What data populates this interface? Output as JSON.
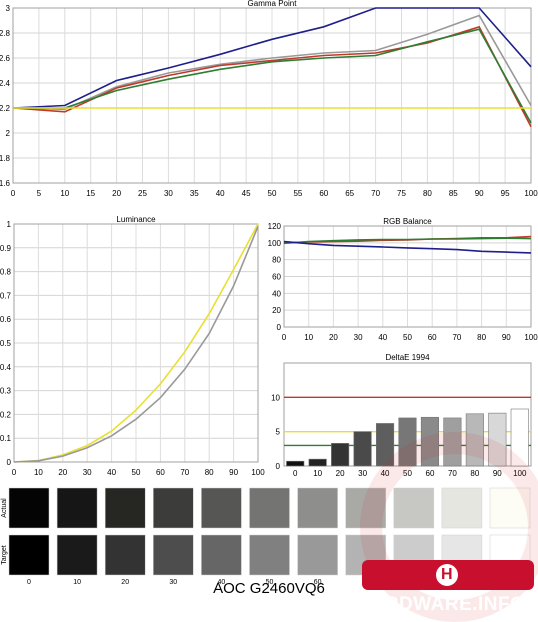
{
  "footer_title": "AOC G2460VQ6",
  "brand": {
    "text": "ARDWARE.INFO",
    "letter": "H"
  },
  "chart_data": [
    {
      "id": "gamma",
      "type": "line",
      "title": "Gamma Point",
      "x": [
        0,
        10,
        20,
        30,
        40,
        50,
        60,
        70,
        80,
        90,
        100
      ],
      "xticks": [
        0,
        5,
        10,
        15,
        20,
        25,
        30,
        35,
        40,
        45,
        50,
        55,
        60,
        65,
        70,
        75,
        80,
        85,
        90,
        95,
        100
      ],
      "xlim": [
        0,
        100
      ],
      "ylim": [
        1.6,
        3.0
      ],
      "yticks": [
        "3",
        "2.8",
        "2.6",
        "2.4",
        "2.2",
        "2",
        "1.8",
        "1.6"
      ],
      "grid": true,
      "series": [
        {
          "color": "#1f1f8a",
          "values": [
            2.2,
            2.22,
            2.42,
            2.52,
            2.63,
            2.75,
            2.85,
            3.0,
            3.0,
            3.0,
            2.53
          ]
        },
        {
          "color": "#999999",
          "values": [
            2.2,
            2.19,
            2.37,
            2.48,
            2.55,
            2.6,
            2.64,
            2.66,
            2.79,
            2.94,
            2.22
          ]
        },
        {
          "color": "#c0392b",
          "values": [
            2.2,
            2.17,
            2.36,
            2.46,
            2.54,
            2.58,
            2.62,
            2.64,
            2.72,
            2.85,
            2.05
          ]
        },
        {
          "color": "#2e7d32",
          "values": [
            2.2,
            2.2,
            2.34,
            2.43,
            2.51,
            2.57,
            2.6,
            2.62,
            2.73,
            2.83,
            2.08
          ]
        },
        {
          "color": "#e8e030",
          "values": [
            2.2,
            2.2,
            2.2,
            2.2,
            2.2,
            2.2,
            2.2,
            2.2,
            2.2,
            2.2,
            2.2
          ]
        }
      ]
    },
    {
      "id": "luminance",
      "type": "line",
      "title": "Luminance",
      "x": [
        0,
        10,
        20,
        30,
        40,
        50,
        60,
        70,
        80,
        90,
        100
      ],
      "xticks": [
        0,
        10,
        20,
        30,
        40,
        50,
        60,
        70,
        80,
        90,
        100
      ],
      "xlim": [
        0,
        100
      ],
      "ylim": [
        0,
        1
      ],
      "yticks": [
        "1",
        "0.9",
        "0.8",
        "0.7",
        "0.6",
        "0.5",
        "0.4",
        "0.3",
        "0.2",
        "0.1",
        "0"
      ],
      "grid": true,
      "series": [
        {
          "color": "#e8e030",
          "values": [
            0,
            0.006,
            0.03,
            0.069,
            0.13,
            0.218,
            0.328,
            0.463,
            0.623,
            0.809,
            1.0
          ]
        },
        {
          "color": "#999999",
          "values": [
            0,
            0.005,
            0.025,
            0.06,
            0.11,
            0.18,
            0.27,
            0.39,
            0.54,
            0.74,
            0.99
          ]
        }
      ]
    },
    {
      "id": "rgb",
      "type": "line",
      "title": "RGB Balance",
      "x": [
        0,
        10,
        20,
        30,
        40,
        50,
        60,
        70,
        80,
        90,
        100
      ],
      "xticks": [
        0,
        10,
        20,
        30,
        40,
        50,
        60,
        70,
        80,
        90,
        100
      ],
      "xlim": [
        0,
        100
      ],
      "ylim": [
        0,
        120
      ],
      "yticks": [
        "120",
        "100",
        "80",
        "60",
        "40",
        "20",
        "0"
      ],
      "grid": true,
      "series": [
        {
          "color": "#c0392b",
          "values": [
            100,
            101,
            101.5,
            102,
            103,
            103.5,
            104.5,
            105,
            106,
            106,
            107.5
          ]
        },
        {
          "color": "#2e7d32",
          "values": [
            99.5,
            101.5,
            102.5,
            103.5,
            104,
            104,
            104.5,
            104.5,
            105,
            105.5,
            105
          ]
        },
        {
          "color": "#1f1f8a",
          "values": [
            101.5,
            99,
            97,
            96,
            95,
            94,
            93,
            92,
            90,
            89,
            88
          ]
        }
      ]
    },
    {
      "id": "deltae",
      "type": "bar",
      "title": "DeltaE 1994",
      "categories": [
        "0",
        "10",
        "20",
        "30",
        "40",
        "50",
        "60",
        "70",
        "80",
        "90",
        "100"
      ],
      "values": [
        0.7,
        1.0,
        3.3,
        5.0,
        6.2,
        7.0,
        7.1,
        7.0,
        7.6,
        7.7,
        8.3
      ],
      "bar_fills": [
        "#111111",
        "#222222",
        "#333333",
        "#4a4a4a",
        "#5e5e5e",
        "#777777",
        "#8a8a8a",
        "#9f9f9f",
        "#b8b8b8",
        "#d8d8d8",
        "#ffffff"
      ],
      "ylim": [
        0,
        15
      ],
      "yticks": [
        "10",
        "5",
        "0"
      ],
      "reference_lines": [
        {
          "value": 10,
          "color": "#c0392b"
        },
        {
          "value": 5,
          "color": "#e8e030"
        },
        {
          "value": 3,
          "color": "#2e7d32"
        }
      ]
    }
  ],
  "swatches": {
    "actual_label": "Actual",
    "target_label": "Target",
    "labels": [
      "0",
      "10",
      "20",
      "30",
      "40",
      "50",
      "60",
      "70",
      "80",
      "90",
      "100"
    ],
    "actual": [
      "#040404",
      "#161616",
      "#262623",
      "#3c3c3a",
      "#565654",
      "#747472",
      "#8e8e8c",
      "#a9a9a6",
      "#c7c7c4",
      "#e6e6e0",
      "#fdfcf5"
    ],
    "target": [
      "#000000",
      "#1a1a1a",
      "#333333",
      "#4d4d4d",
      "#666666",
      "#808080",
      "#999999",
      "#b3b3b3",
      "#cccccc",
      "#e6e6e6",
      "#ffffff"
    ]
  }
}
